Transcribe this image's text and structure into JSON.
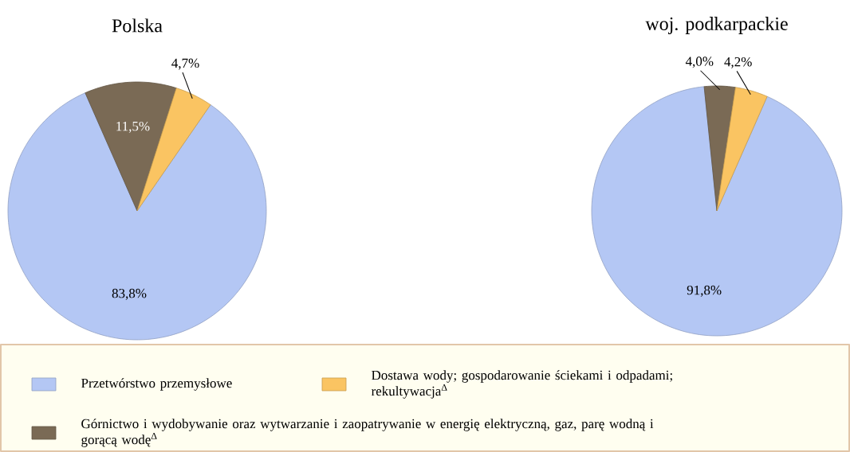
{
  "chart_data": [
    {
      "type": "pie",
      "title": "Polska",
      "categories": [
        "Przetwórstwo przemysłowe",
        "Górnictwo i wydobywanie oraz wytwarzanie i zaopatrywanie w energię elektryczną, gaz, parę wodną i gorącą wodę$^{Δ}$",
        "Dostawa wody; gospodarowanie ściekami i odpadami; rekultywacja$^{Δ}$"
      ],
      "values": [
        83.8,
        11.5,
        4.7
      ],
      "value_labels": [
        "83,8%",
        "11,5%",
        "4,7%"
      ],
      "colors": [
        "#b4c7f4",
        "#7a6a55",
        "#fac462"
      ],
      "legend": "bottom"
    },
    {
      "type": "pie",
      "title": "woj. podkarpackie",
      "categories": [
        null,
        null,
        null
      ],
      "values": [
        91.8,
        4.0,
        4.2
      ],
      "value_labels": [
        "91,8%",
        "4,0%",
        "4,2%"
      ],
      "colors": [
        "#b4c7f4",
        "#7a6a55",
        "#fac462"
      ]
    }
  ]
}
